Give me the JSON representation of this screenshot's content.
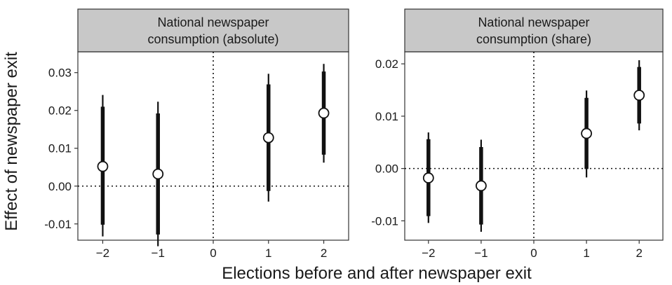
{
  "figure": {
    "ylabel": "Effect of newspaper exit",
    "xlabel": "Elections before and after newspaper exit"
  },
  "chart_data": [
    {
      "type": "scatter",
      "title": "National newspaper consumption (absolute)",
      "title_lines": [
        "National newspaper",
        "consumption (absolute)"
      ],
      "x_ticks": [
        -2,
        -1,
        0,
        1,
        2
      ],
      "x_tick_labels": [
        "−2",
        "−1",
        "0",
        "1",
        "2"
      ],
      "y_ticks": [
        -0.01,
        0.0,
        0.01,
        0.02,
        0.03
      ],
      "y_tick_labels": [
        "-0.01",
        "0.00",
        "0.01",
        "0.02",
        "0.03"
      ],
      "xlim": [
        -2.45,
        2.45
      ],
      "ylim": [
        -0.0143,
        0.0355
      ],
      "reference_lines": {
        "x": 0,
        "y": 0,
        "style": "dotted"
      },
      "points": [
        {
          "x": -2,
          "estimate": 0.0052,
          "ci90": [
            -0.0102,
            0.021
          ],
          "ci95": [
            -0.0133,
            0.0241
          ]
        },
        {
          "x": -1,
          "estimate": 0.0032,
          "ci90": [
            -0.0128,
            0.0192
          ],
          "ci95": [
            -0.0159,
            0.0223
          ]
        },
        {
          "x": 1,
          "estimate": 0.0128,
          "ci90": [
            -0.0013,
            0.0269
          ],
          "ci95": [
            -0.0041,
            0.0297
          ]
        },
        {
          "x": 2,
          "estimate": 0.0193,
          "ci90": [
            0.0083,
            0.0303
          ],
          "ci95": [
            0.0062,
            0.0323
          ]
        }
      ],
      "grid": false
    },
    {
      "type": "scatter",
      "title": "National newspaper consumption (share)",
      "title_lines": [
        "National newspaper",
        "consumption (share)"
      ],
      "x_ticks": [
        -2,
        -1,
        0,
        1,
        2
      ],
      "x_tick_labels": [
        "−2",
        "−1",
        "0",
        "1",
        "2"
      ],
      "y_ticks": [
        -0.01,
        0.0,
        0.01,
        0.02
      ],
      "y_tick_labels": [
        "-0.01",
        "0.00",
        "0.01",
        "0.02"
      ],
      "xlim": [
        -2.45,
        2.45
      ],
      "ylim": [
        -0.0137,
        0.0223
      ],
      "reference_lines": {
        "x": 0,
        "y": 0,
        "style": "dotted"
      },
      "points": [
        {
          "x": -2,
          "estimate": -0.0018,
          "ci90": [
            -0.0091,
            0.0056
          ],
          "ci95": [
            -0.0104,
            0.0069
          ]
        },
        {
          "x": -1,
          "estimate": -0.0033,
          "ci90": [
            -0.0107,
            0.0041
          ],
          "ci95": [
            -0.0121,
            0.0055
          ]
        },
        {
          "x": 1,
          "estimate": 0.0067,
          "ci90": [
            -0.0001,
            0.0135
          ],
          "ci95": [
            -0.0017,
            0.0149
          ]
        },
        {
          "x": 2,
          "estimate": 0.014,
          "ci90": [
            0.0086,
            0.0194
          ],
          "ci95": [
            0.0073,
            0.0207
          ]
        }
      ],
      "grid": false
    }
  ],
  "colors": {
    "strip_fill": "#c8c8c8",
    "frame": "#333333",
    "marks": "#111111",
    "point_fill": "#ffffff",
    "text": "#1a1a1a"
  }
}
